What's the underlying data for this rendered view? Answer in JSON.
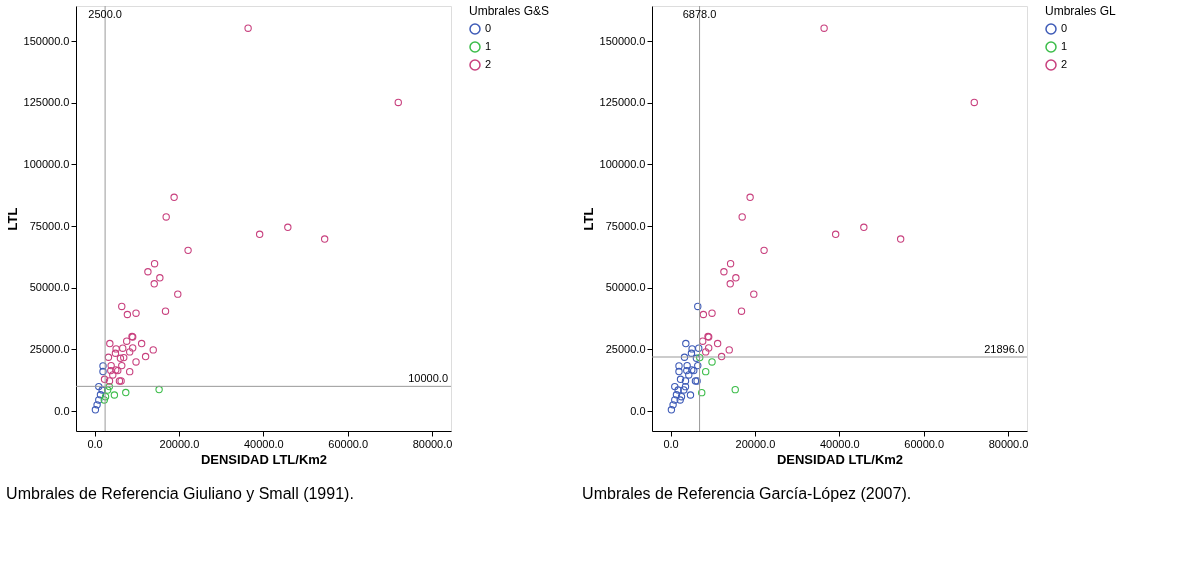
{
  "chart_data": [
    {
      "type": "scatter",
      "xlabel": "DENSIDAD LTL/Km2",
      "ylabel": "LTL",
      "legend_title": "Umbrales G&S",
      "legend": "top right",
      "marker": "circle",
      "grid": false,
      "xlim": [
        -4400,
        84500
      ],
      "ylim": [
        -8100,
        164200
      ],
      "xticks": [
        {
          "value": 0,
          "label": "0.0"
        },
        {
          "value": 20000,
          "label": "20000.0"
        },
        {
          "value": 40000,
          "label": "40000.0"
        },
        {
          "value": 60000,
          "label": "60000.0"
        },
        {
          "value": 80000,
          "label": "80000.0"
        }
      ],
      "yticks": [
        {
          "value": 0,
          "label": "0.0"
        },
        {
          "value": 25000,
          "label": "25000.0"
        },
        {
          "value": 50000,
          "label": "50000.0"
        },
        {
          "value": 75000,
          "label": "75000.0"
        },
        {
          "value": 100000,
          "label": "100000.0"
        },
        {
          "value": 125000,
          "label": "125000.0"
        },
        {
          "value": 150000,
          "label": "150000.0"
        }
      ],
      "ref_lines": [
        {
          "axis": "x",
          "value": 2500,
          "label": "2500.0",
          "color": "#999999"
        },
        {
          "axis": "y",
          "value": 10000,
          "label": "10000.0",
          "color": "#999999"
        }
      ],
      "annotations": [
        "Umbrales de Referencia Giuliano y Small (1991)."
      ],
      "series": [
        {
          "name": "0",
          "color": "#3e5bb7",
          "x": [
            2000,
            2000,
            1000,
            200,
            600,
            1000,
            1400,
            1800
          ],
          "values": [
            18300,
            16000,
            9900,
            500,
            2500,
            4500,
            6600,
            8500
          ]
        },
        {
          "name": "1",
          "color": "#3cbd4a",
          "x": [
            15300,
            7400,
            4700,
            3100,
            2600,
            2300,
            3500
          ],
          "values": [
            8700,
            7500,
            6500,
            8500,
            5800,
            4500,
            9900
          ]
        },
        {
          "name": "2",
          "color": "#c8407e",
          "x": [
            36400,
            72000,
            18860,
            16980,
            45820,
            39140,
            54550,
            22170,
            14230,
            12650,
            15480,
            14150,
            19730,
            6450,
            7780,
            9830,
            16820,
            8880,
            9040,
            3620,
            7620,
            11160,
            5110,
            6680,
            9040,
            13910,
            8330,
            4950,
            3300,
            6130,
            6920,
            12100,
            9830,
            3930,
            6450,
            5500,
            3850,
            5030,
            8330,
            5900,
            6290,
            3540,
            2360,
            4320
          ],
          "values": [
            155200,
            125100,
            86650,
            78670,
            74470,
            71630,
            69730,
            65130,
            59720,
            56460,
            54020,
            51590,
            47390,
            42380,
            39130,
            39670,
            40480,
            30190,
            30000,
            27350,
            28300,
            27350,
            25180,
            25460,
            25590,
            24780,
            23970,
            23420,
            21800,
            21390,
            21660,
            22070,
            19900,
            18410,
            18410,
            16380,
            16380,
            16650,
            15970,
            12190,
            12190,
            12190,
            12860,
            14620
          ]
        }
      ]
    },
    {
      "type": "scatter",
      "xlabel": "DENSIDAD LTL/Km2",
      "ylabel": "LTL",
      "legend_title": "Umbrales GL",
      "legend": "top right",
      "marker": "circle",
      "grid": false,
      "xlim": [
        -4400,
        84500
      ],
      "ylim": [
        -8100,
        164200
      ],
      "xticks": [
        {
          "value": 0,
          "label": "0.0"
        },
        {
          "value": 20000,
          "label": "20000.0"
        },
        {
          "value": 40000,
          "label": "40000.0"
        },
        {
          "value": 60000,
          "label": "60000.0"
        },
        {
          "value": 80000,
          "label": "80000.0"
        }
      ],
      "yticks": [
        {
          "value": 0,
          "label": "0.0"
        },
        {
          "value": 25000,
          "label": "25000.0"
        },
        {
          "value": 50000,
          "label": "50000.0"
        },
        {
          "value": 75000,
          "label": "75000.0"
        },
        {
          "value": 100000,
          "label": "100000.0"
        },
        {
          "value": 125000,
          "label": "125000.0"
        },
        {
          "value": 150000,
          "label": "150000.0"
        }
      ],
      "ref_lines": [
        {
          "axis": "x",
          "value": 6878,
          "label": "6878.0",
          "color": "#999999"
        },
        {
          "axis": "y",
          "value": 21896,
          "label": "21896.0",
          "color": "#999999"
        }
      ],
      "annotations": [
        "Umbrales de Referencia García-López (2007)."
      ],
      "series": [
        {
          "name": "0",
          "color": "#3e5bb7",
          "x": [
            2000,
            2000,
            1000,
            200,
            600,
            1000,
            1400,
            1800,
            6450,
            3620,
            5110,
            6680,
            4950,
            3300,
            6130,
            3930,
            6450,
            5500,
            3850,
            5030,
            5900,
            6290,
            3540,
            2360,
            4320,
            4720,
            3140,
            2590,
            2280,
            3540
          ],
          "values": [
            18300,
            16000,
            9900,
            500,
            2500,
            4500,
            6600,
            8500,
            42380,
            27350,
            25180,
            25460,
            23420,
            21800,
            21390,
            18410,
            18410,
            16380,
            16380,
            16650,
            12190,
            12190,
            12190,
            12860,
            14620,
            6500,
            8530,
            5820,
            4470,
            9880
          ]
        },
        {
          "name": "1",
          "color": "#3cbd4a",
          "x": [
            15330,
            7390,
            6920,
            9830,
            8330
          ],
          "values": [
            8670,
            7450,
            21660,
            19900,
            15970
          ]
        },
        {
          "name": "2",
          "color": "#c8407e",
          "x": [
            36400,
            72000,
            18860,
            16980,
            45820,
            39140,
            54550,
            22170,
            14230,
            12650,
            15480,
            14150,
            19730,
            7780,
            9830,
            16820,
            8880,
            9040,
            7620,
            11160,
            9040,
            13910,
            8330,
            12100
          ],
          "values": [
            155200,
            125100,
            86650,
            78670,
            74470,
            71630,
            69730,
            65130,
            59720,
            56460,
            54020,
            51590,
            47390,
            39130,
            39670,
            40480,
            30190,
            30000,
            28300,
            27350,
            25590,
            24780,
            23970,
            22070
          ]
        }
      ]
    }
  ]
}
